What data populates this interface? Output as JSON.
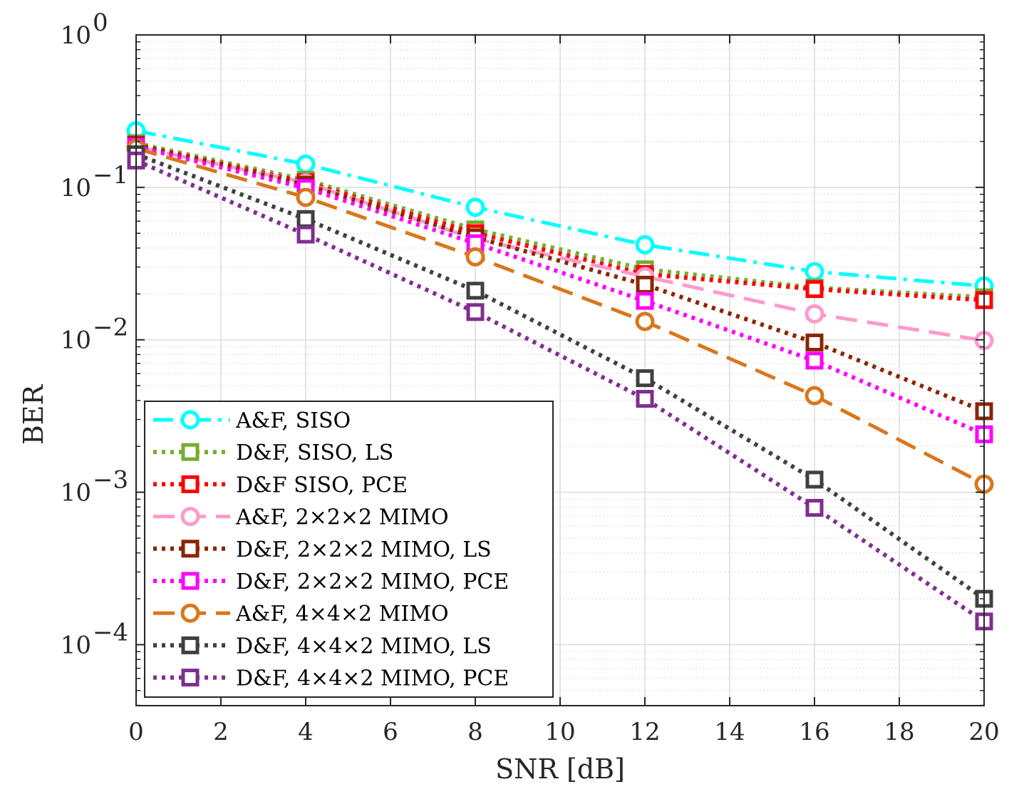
{
  "chart_data": {
    "type": "line",
    "title": "",
    "xlabel": "SNR [dB]",
    "ylabel": "BER",
    "yscale": "log",
    "xlim": [
      0,
      20
    ],
    "ylim_exp": [
      -4.4,
      0
    ],
    "grid": true,
    "legend_position": "bottom-left",
    "x": [
      0,
      4,
      8,
      12,
      16,
      20
    ],
    "x_ticks": [
      0,
      2,
      4,
      6,
      8,
      10,
      12,
      14,
      16,
      18,
      20
    ],
    "x_tick_labels": [
      "0",
      "2",
      "4",
      "6",
      "8",
      "10",
      "12",
      "14",
      "16",
      "18",
      "20"
    ],
    "y_tick_exponents": [
      0,
      -1,
      -2,
      -3,
      -4
    ],
    "y_tick_base": "10",
    "y_tick_powers": [
      "0",
      "−1",
      "−2",
      "−3",
      "−4"
    ],
    "series": [
      {
        "name": "A&F, SISO",
        "color": "#00ffff",
        "dash": "dashdot",
        "marker": "circle",
        "values": [
          0.235,
          0.142,
          0.074,
          0.042,
          0.028,
          0.0225
        ]
      },
      {
        "name": "D&F, SISO, LS",
        "color": "#77ac30",
        "dash": "dotted",
        "marker": "square",
        "values": [
          0.195,
          0.112,
          0.053,
          0.029,
          0.022,
          0.019
        ]
      },
      {
        "name": "D&F SISO, PCE",
        "color": "#ff0000",
        "dash": "dotted",
        "marker": "square",
        "values": [
          0.19,
          0.108,
          0.05,
          0.027,
          0.0215,
          0.0182
        ]
      },
      {
        "name": "A&F, 2×2×2 MIMO",
        "color": "#ff99cc",
        "dash": "longdash",
        "marker": "circle",
        "values": [
          0.185,
          0.107,
          0.046,
          0.026,
          0.0148,
          0.0099
        ]
      },
      {
        "name": "D&F, 2×2×2 MIMO, LS",
        "color": "#8b2500",
        "dash": "dotted",
        "marker": "square",
        "values": [
          0.19,
          0.104,
          0.047,
          0.023,
          0.0096,
          0.0034
        ]
      },
      {
        "name": "D&F, 2×2×2 MIMO, PCE",
        "color": "#ff00ff",
        "dash": "dotted",
        "marker": "square",
        "values": [
          0.185,
          0.099,
          0.043,
          0.018,
          0.0073,
          0.0024
        ]
      },
      {
        "name": "A&F, 4×4×2 MIMO",
        "color": "#d9771b",
        "dash": "longdash",
        "marker": "circle",
        "values": [
          0.18,
          0.086,
          0.035,
          0.0132,
          0.0043,
          0.00113
        ]
      },
      {
        "name": "D&F, 4×4×2 MIMO, LS",
        "color": "#404040",
        "dash": "dotted",
        "marker": "square",
        "values": [
          0.165,
          0.062,
          0.021,
          0.0056,
          0.00121,
          0.0002
        ]
      },
      {
        "name": "D&F, 4×4×2 MIMO, PCE",
        "color": "#7e2f8e",
        "dash": "dotted",
        "marker": "square",
        "values": [
          0.15,
          0.049,
          0.0152,
          0.0041,
          0.00079,
          0.000142
        ]
      }
    ]
  }
}
